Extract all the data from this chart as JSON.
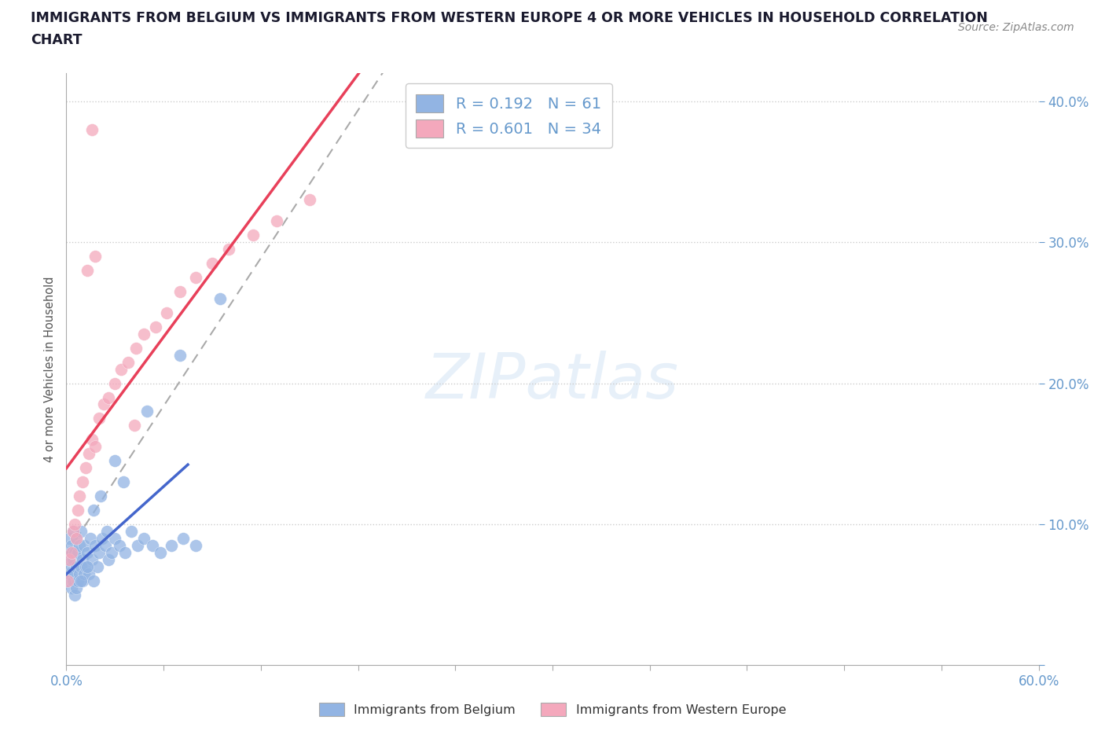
{
  "title_line1": "IMMIGRANTS FROM BELGIUM VS IMMIGRANTS FROM WESTERN EUROPE 4 OR MORE VEHICLES IN HOUSEHOLD CORRELATION",
  "title_line2": "CHART",
  "source_text": "Source: ZipAtlas.com",
  "ylabel": "4 or more Vehicles in Household",
  "xlim": [
    0.0,
    0.6
  ],
  "ylim": [
    0.0,
    0.42
  ],
  "watermark_text": "ZIPatlas",
  "belgium_color": "#92b4e3",
  "western_europe_color": "#f4a8bc",
  "belgium_R": 0.192,
  "belgium_N": 61,
  "western_europe_R": 0.601,
  "western_europe_N": 34,
  "belgium_line_color": "#4466cc",
  "western_europe_line_color": "#e8405a",
  "trend_line_color": "#aaaaaa",
  "axis_color": "#6699cc",
  "title_color": "#1a1a2e",
  "source_color": "#888888",
  "ylabel_color": "#555555",
  "belgium_x": [
    0.001,
    0.001,
    0.002,
    0.002,
    0.002,
    0.003,
    0.003,
    0.003,
    0.004,
    0.004,
    0.004,
    0.005,
    0.005,
    0.005,
    0.006,
    0.006,
    0.006,
    0.007,
    0.007,
    0.008,
    0.008,
    0.009,
    0.009,
    0.01,
    0.01,
    0.011,
    0.011,
    0.012,
    0.013,
    0.014,
    0.015,
    0.016,
    0.017,
    0.018,
    0.019,
    0.02,
    0.022,
    0.024,
    0.026,
    0.028,
    0.03,
    0.033,
    0.036,
    0.04,
    0.044,
    0.048,
    0.053,
    0.058,
    0.065,
    0.072,
    0.08,
    0.009,
    0.013,
    0.017,
    0.021,
    0.025,
    0.03,
    0.035,
    0.05,
    0.07,
    0.095
  ],
  "belgium_y": [
    0.06,
    0.075,
    0.065,
    0.08,
    0.09,
    0.055,
    0.07,
    0.085,
    0.06,
    0.075,
    0.095,
    0.05,
    0.065,
    0.08,
    0.055,
    0.07,
    0.09,
    0.06,
    0.08,
    0.065,
    0.085,
    0.07,
    0.095,
    0.06,
    0.075,
    0.065,
    0.085,
    0.07,
    0.08,
    0.065,
    0.09,
    0.075,
    0.06,
    0.085,
    0.07,
    0.08,
    0.09,
    0.085,
    0.075,
    0.08,
    0.09,
    0.085,
    0.08,
    0.095,
    0.085,
    0.09,
    0.085,
    0.08,
    0.085,
    0.09,
    0.085,
    0.06,
    0.07,
    0.11,
    0.12,
    0.095,
    0.145,
    0.13,
    0.18,
    0.22,
    0.26
  ],
  "western_europe_x": [
    0.001,
    0.002,
    0.003,
    0.004,
    0.005,
    0.006,
    0.007,
    0.008,
    0.01,
    0.012,
    0.014,
    0.016,
    0.018,
    0.02,
    0.023,
    0.026,
    0.03,
    0.034,
    0.038,
    0.043,
    0.048,
    0.055,
    0.062,
    0.07,
    0.08,
    0.09,
    0.1,
    0.115,
    0.13,
    0.15,
    0.013,
    0.018,
    0.042,
    0.016
  ],
  "western_europe_y": [
    0.06,
    0.075,
    0.08,
    0.095,
    0.1,
    0.09,
    0.11,
    0.12,
    0.13,
    0.14,
    0.15,
    0.16,
    0.155,
    0.175,
    0.185,
    0.19,
    0.2,
    0.21,
    0.215,
    0.225,
    0.235,
    0.24,
    0.25,
    0.265,
    0.275,
    0.285,
    0.295,
    0.305,
    0.315,
    0.33,
    0.28,
    0.29,
    0.17,
    0.38
  ]
}
